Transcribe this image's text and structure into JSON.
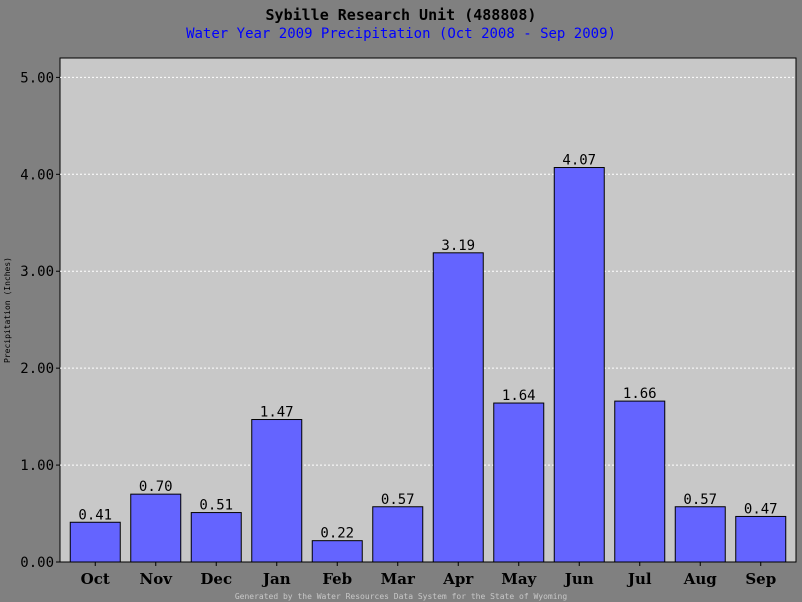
{
  "chart_data": {
    "type": "bar",
    "title": "Sybille Research Unit (488808)",
    "subtitle": "Water Year 2009 Precipitation (Oct 2008 - Sep 2009)",
    "ylabel": "Precipitation (Inches)",
    "xlabel": "",
    "categories": [
      "Oct",
      "Nov",
      "Dec",
      "Jan",
      "Feb",
      "Mar",
      "Apr",
      "May",
      "Jun",
      "Jul",
      "Aug",
      "Sep"
    ],
    "values": [
      0.41,
      0.7,
      0.51,
      1.47,
      0.22,
      0.57,
      3.19,
      1.64,
      4.07,
      1.66,
      0.57,
      0.47
    ],
    "value_labels": [
      "0.41",
      "0.70",
      "0.51",
      "1.47",
      "0.22",
      "0.57",
      "3.19",
      "1.64",
      "4.07",
      "1.66",
      "0.57",
      "0.47"
    ],
    "ylim": [
      0,
      5.2
    ],
    "yticks": [
      0,
      1,
      2,
      3,
      4,
      5
    ],
    "ytick_labels": [
      "0.00",
      "1.00",
      "2.00",
      "3.00",
      "4.00",
      "5.00"
    ],
    "grid": true,
    "legend": "none",
    "footer": "Generated by the Water Resources Data System for the State of Wyoming"
  },
  "colors": {
    "background": "#808080",
    "plot_area": "#c8c8c8",
    "bar_fill": "#6464ff",
    "bar_stroke": "#000000",
    "gridline": "#ffffff",
    "title": "#000000",
    "subtitle": "#0000ff",
    "footer": "#c8c8c8"
  }
}
